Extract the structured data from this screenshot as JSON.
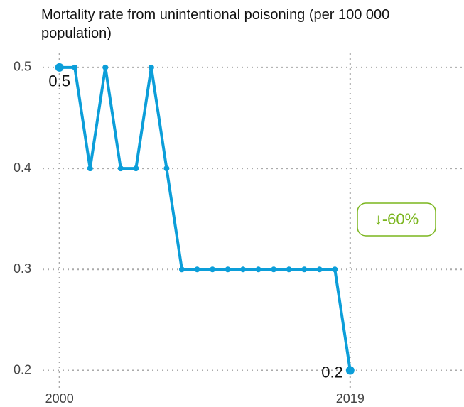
{
  "chart_data": {
    "type": "line",
    "title": "Mortality rate from unintentional poisoning (per 100 000 population)",
    "x": [
      2000,
      2001,
      2002,
      2003,
      2004,
      2005,
      2006,
      2007,
      2008,
      2009,
      2010,
      2011,
      2012,
      2013,
      2014,
      2015,
      2016,
      2017,
      2018,
      2019
    ],
    "series": [
      {
        "color": "#0c9ed9",
        "values": [
          0.5,
          0.5,
          0.4,
          0.5,
          0.4,
          0.4,
          0.5,
          0.4,
          0.3,
          0.3,
          0.3,
          0.3,
          0.3,
          0.3,
          0.3,
          0.3,
          0.3,
          0.3,
          0.3,
          0.2
        ],
        "value_labels": [
          "0.5",
          null,
          null,
          null,
          null,
          null,
          null,
          null,
          null,
          null,
          null,
          null,
          null,
          null,
          null,
          null,
          null,
          null,
          null,
          "0.2"
        ]
      }
    ],
    "xlim": [
      1998.9,
      2026.3
    ],
    "xticks": [
      2000,
      2019
    ],
    "ylim": [
      0.187,
      0.514
    ],
    "yticks": [
      0.2,
      0.3,
      0.4,
      0.5
    ],
    "grid": true,
    "annotation": "↓-60%",
    "annotation_color": "#7ab51d"
  }
}
